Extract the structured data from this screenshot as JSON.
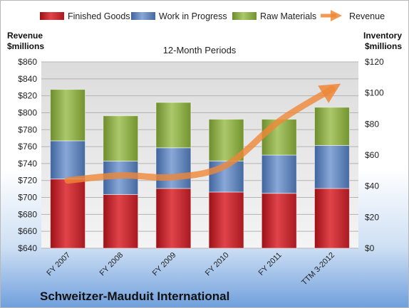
{
  "chart_data": {
    "type": "bar",
    "stacked": true,
    "title": "12-Month Periods",
    "company": "Schweitzer-Mauduit International",
    "categories": [
      "FY 2007",
      "FY 2008",
      "FY 2009",
      "FY 2010",
      "FY 2011",
      "TTM 3-2012"
    ],
    "left_axis": {
      "label_line1": "Revenue",
      "label_line2": "$millions",
      "range": [
        640,
        860
      ],
      "step": 20,
      "prefix": "$"
    },
    "right_axis": {
      "label_line1": "Inventory",
      "label_line2": "$millions",
      "range": [
        0,
        120
      ],
      "step": 20,
      "prefix": "$"
    },
    "series": [
      {
        "name": "Finished Goods",
        "axis": "right",
        "values": [
          44.6,
          34.6,
          38.5,
          36.2,
          35.4,
          38.5
        ],
        "color": "#c0232a"
      },
      {
        "name": "Work in Progress",
        "axis": "right",
        "values": [
          24.6,
          21.5,
          26.2,
          20.0,
          24.6,
          27.7
        ],
        "color": "#5b7fba"
      },
      {
        "name": "Raw Materials",
        "axis": "right",
        "values": [
          33.1,
          29.2,
          29.2,
          26.9,
          23.1,
          24.6
        ],
        "color": "#8db044"
      }
    ],
    "line_series": {
      "name": "Revenue",
      "axis": "left",
      "values": [
        720,
        726,
        724,
        738,
        790,
        828
      ],
      "color": "#ef8737"
    },
    "grid": true,
    "legend_position": "top"
  }
}
